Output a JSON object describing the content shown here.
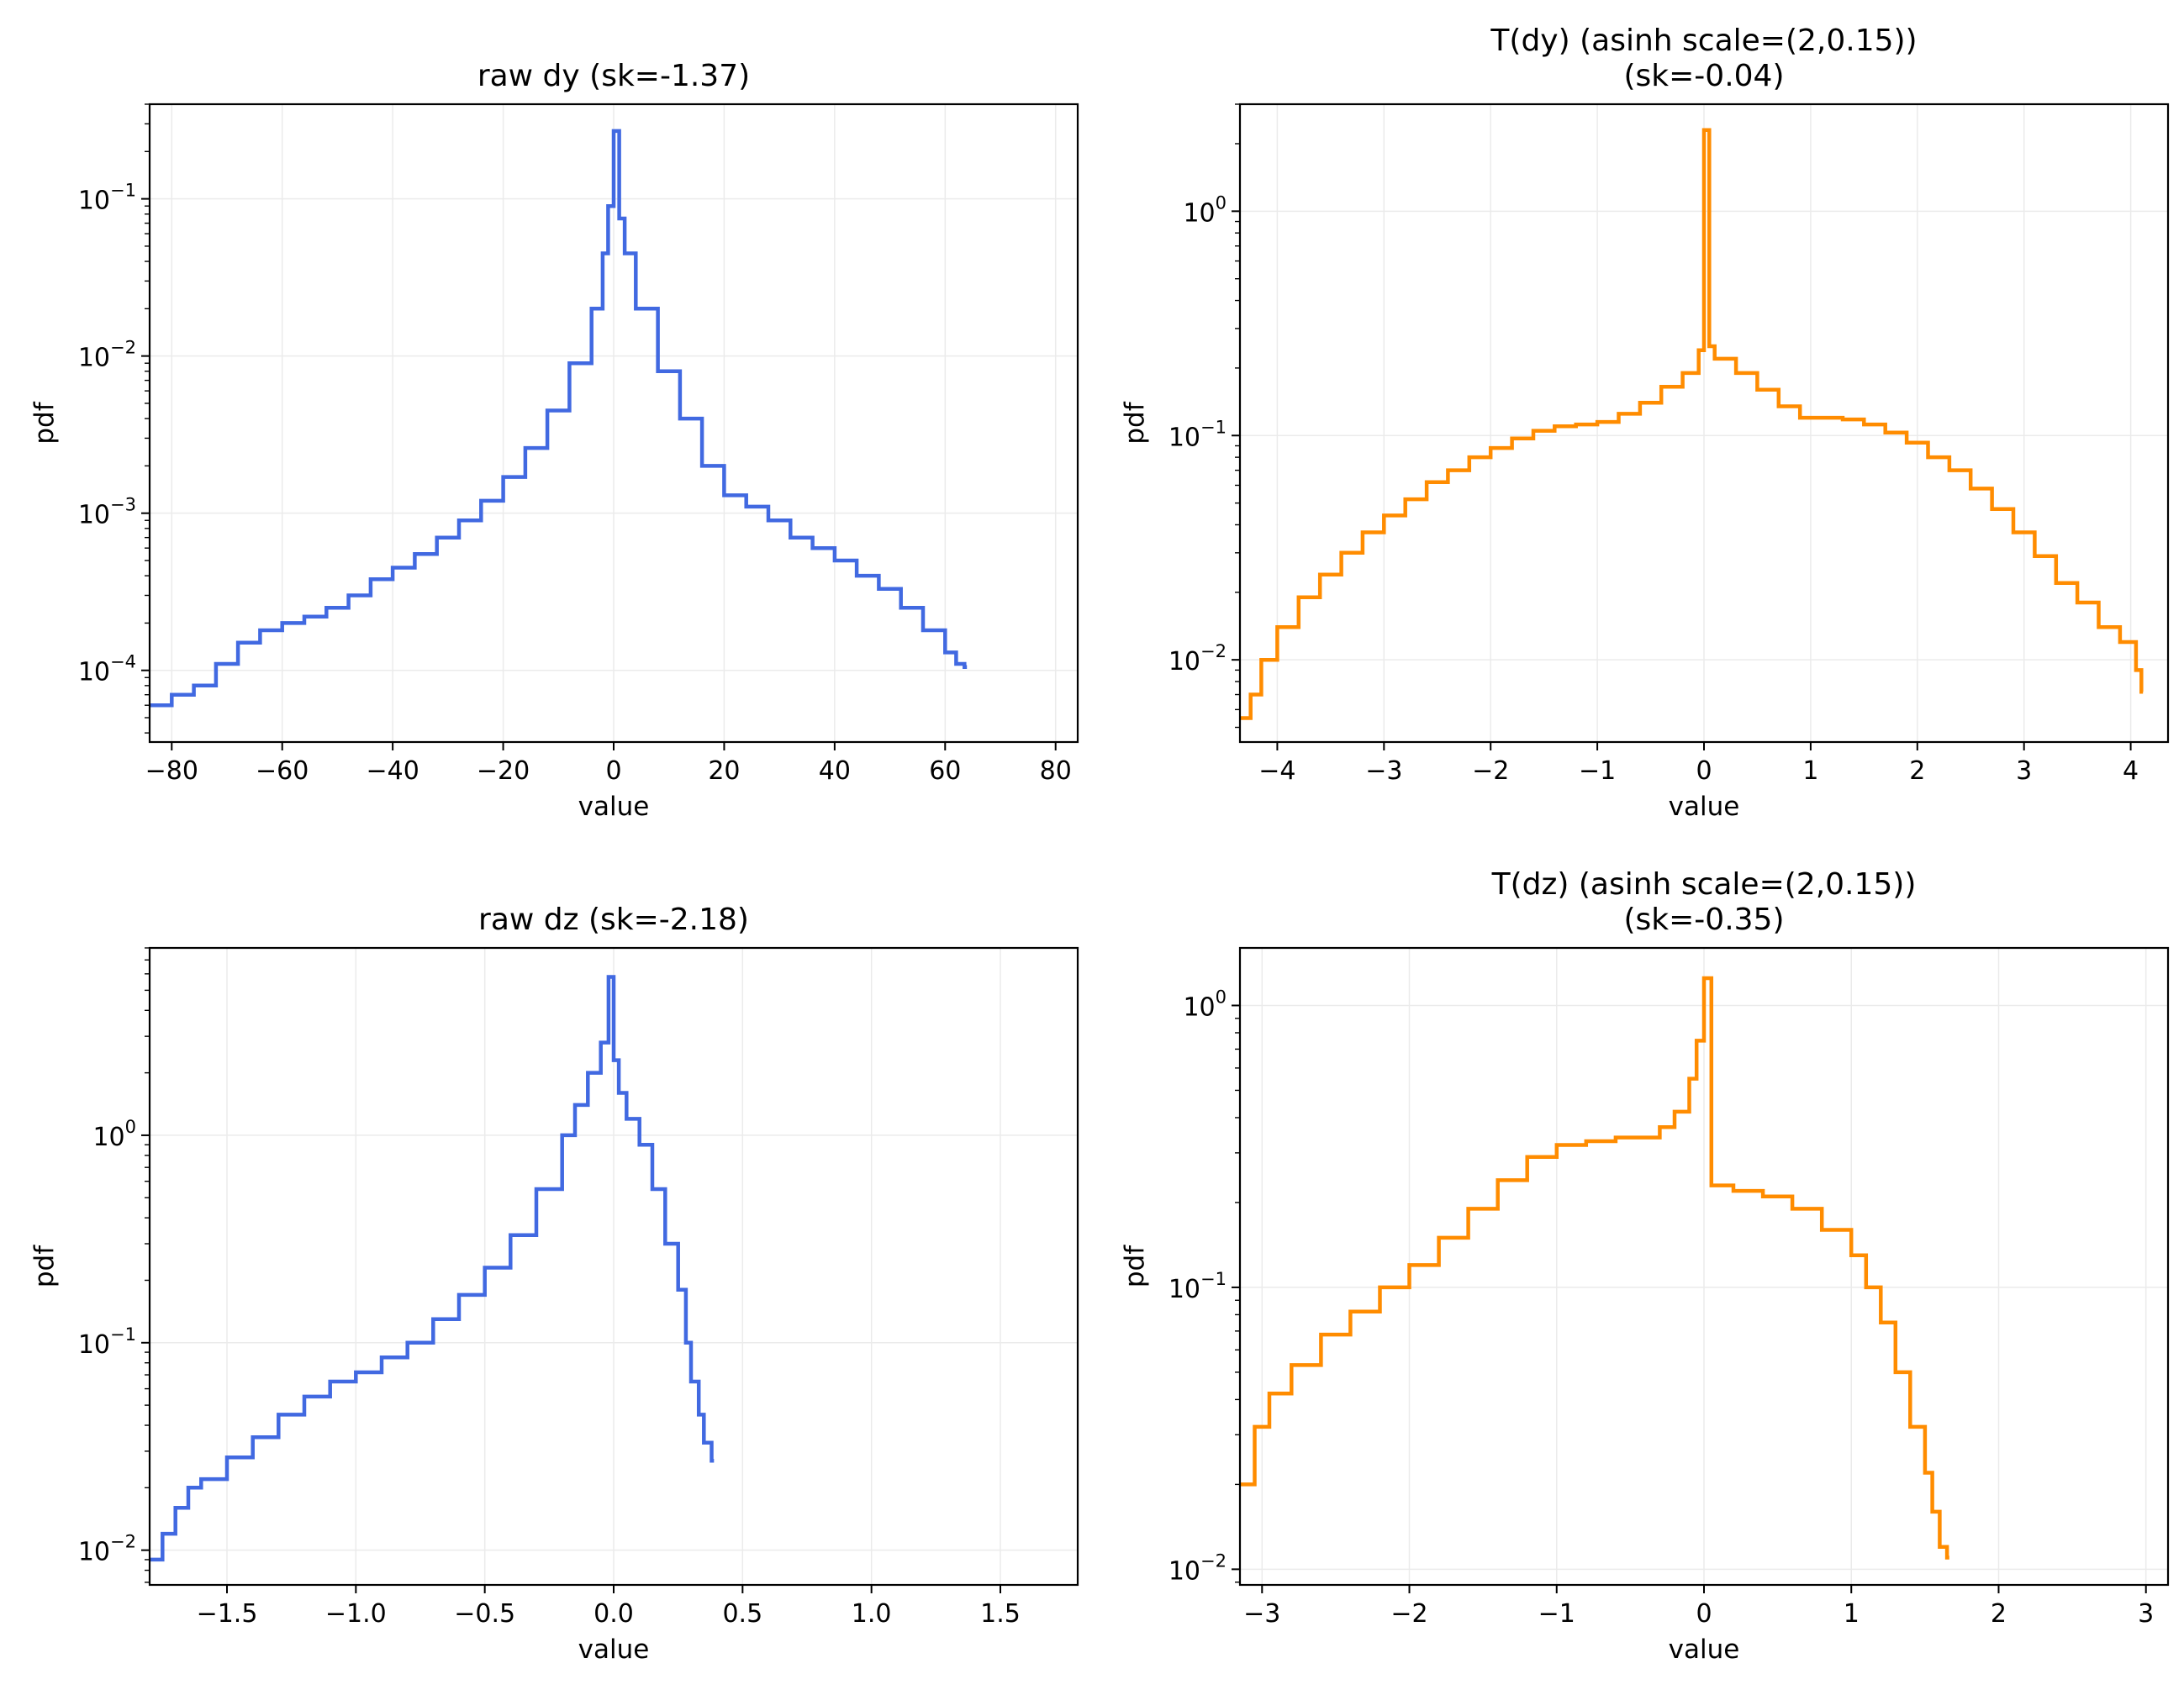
{
  "chart_data": [
    {
      "type": "line",
      "title": [
        "raw dy (sk=-1.37)"
      ],
      "xlabel": "value",
      "ylabel": "pdf",
      "color": "#4169e1",
      "xlim": [
        -84,
        84
      ],
      "ylim": [
        3.5e-05,
        0.4
      ],
      "yscale": "log",
      "grid": true,
      "xticks": [
        -80,
        -60,
        -40,
        -20,
        0,
        20,
        40,
        60,
        80
      ],
      "xtick_labels": [
        "−80",
        "−60",
        "−40",
        "−20",
        "0",
        "20",
        "40",
        "60",
        "80"
      ],
      "yticks": [
        0.0001,
        0.001,
        0.01,
        0.1
      ],
      "ytick_labels": [
        [
          "10",
          "−4"
        ],
        [
          "10",
          "−3"
        ],
        [
          "10",
          "−2"
        ],
        [
          "10",
          "−1"
        ]
      ],
      "x": [
        -84,
        -80,
        -76,
        -72,
        -68,
        -64,
        -60,
        -56,
        -52,
        -48,
        -44,
        -40,
        -36,
        -32,
        -28,
        -24,
        -20,
        -16,
        -12,
        -8,
        -4,
        -2,
        -1,
        0,
        1,
        2,
        4,
        8,
        12,
        16,
        20,
        24,
        28,
        32,
        36,
        40,
        44,
        48,
        52,
        56,
        60,
        62,
        63.5
      ],
      "y": [
        6e-05,
        7e-05,
        8e-05,
        0.00011,
        0.00015,
        0.00018,
        0.0002,
        0.00022,
        0.00025,
        0.0003,
        0.00038,
        0.00045,
        0.00055,
        0.0007,
        0.0009,
        0.0012,
        0.0017,
        0.0026,
        0.0045,
        0.009,
        0.02,
        0.045,
        0.09,
        0.27,
        0.075,
        0.045,
        0.02,
        0.008,
        0.004,
        0.002,
        0.0013,
        0.0011,
        0.0009,
        0.0007,
        0.0006,
        0.0005,
        0.0004,
        0.00033,
        0.00025,
        0.00018,
        0.00013,
        0.00011,
        0.000105
      ]
    },
    {
      "type": "line",
      "title": [
        "T(dy) (asinh scale=(2,0.15))",
        "(sk=-0.04)"
      ],
      "xlabel": "value",
      "ylabel": "pdf",
      "color": "#ff8c00",
      "xlim": [
        -4.35,
        4.35
      ],
      "ylim": [
        0.0043,
        3
      ],
      "yscale": "log",
      "grid": true,
      "xticks": [
        -4,
        -3,
        -2,
        -1,
        0,
        1,
        2,
        3,
        4
      ],
      "xtick_labels": [
        "−4",
        "−3",
        "−2",
        "−1",
        "0",
        "1",
        "2",
        "3",
        "4"
      ],
      "yticks": [
        0.01,
        0.1,
        1
      ],
      "ytick_labels": [
        [
          "10",
          "−2"
        ],
        [
          "10",
          "−1"
        ],
        [
          "10",
          "0"
        ]
      ],
      "x": [
        -4.35,
        -4.25,
        -4.15,
        -4.0,
        -3.8,
        -3.6,
        -3.4,
        -3.2,
        -3.0,
        -2.8,
        -2.6,
        -2.4,
        -2.2,
        -2.0,
        -1.8,
        -1.6,
        -1.4,
        -1.2,
        -1.0,
        -0.8,
        -0.6,
        -0.4,
        -0.2,
        -0.05,
        0.0,
        0.05,
        0.1,
        0.3,
        0.5,
        0.7,
        0.9,
        1.1,
        1.3,
        1.5,
        1.7,
        1.9,
        2.1,
        2.3,
        2.5,
        2.7,
        2.9,
        3.1,
        3.3,
        3.5,
        3.7,
        3.9,
        4.05,
        4.1
      ],
      "y": [
        0.0055,
        0.007,
        0.01,
        0.014,
        0.019,
        0.024,
        0.03,
        0.037,
        0.044,
        0.052,
        0.062,
        0.07,
        0.08,
        0.088,
        0.097,
        0.105,
        0.11,
        0.112,
        0.115,
        0.125,
        0.14,
        0.165,
        0.19,
        0.24,
        2.3,
        0.25,
        0.22,
        0.19,
        0.16,
        0.135,
        0.12,
        0.12,
        0.118,
        0.112,
        0.103,
        0.093,
        0.08,
        0.07,
        0.058,
        0.047,
        0.037,
        0.029,
        0.022,
        0.018,
        0.014,
        0.012,
        0.009,
        0.0072
      ]
    },
    {
      "type": "line",
      "title": [
        "raw dz (sk=-2.18)"
      ],
      "xlabel": "value",
      "ylabel": "pdf",
      "color": "#4169e1",
      "xlim": [
        -1.8,
        1.8
      ],
      "ylim": [
        0.0068,
        8
      ],
      "yscale": "log",
      "grid": true,
      "xticks": [
        -1.5,
        -1.0,
        -0.5,
        0.0,
        0.5,
        1.0,
        1.5
      ],
      "xtick_labels": [
        "−1.5",
        "−1.0",
        "−0.5",
        "0.0",
        "0.5",
        "1.0",
        "1.5"
      ],
      "yticks": [
        0.01,
        0.1,
        1
      ],
      "ytick_labels": [
        [
          "10",
          "−2"
        ],
        [
          "10",
          "−1"
        ],
        [
          "10",
          "0"
        ]
      ],
      "x": [
        -1.8,
        -1.75,
        -1.7,
        -1.65,
        -1.6,
        -1.5,
        -1.4,
        -1.3,
        -1.2,
        -1.1,
        -1.0,
        -0.9,
        -0.8,
        -0.7,
        -0.6,
        -0.5,
        -0.4,
        -0.3,
        -0.2,
        -0.15,
        -0.1,
        -0.05,
        -0.02,
        0.0,
        0.02,
        0.05,
        0.1,
        0.15,
        0.2,
        0.25,
        0.28,
        0.3,
        0.33,
        0.35,
        0.38
      ],
      "y": [
        0.009,
        0.012,
        0.016,
        0.02,
        0.022,
        0.028,
        0.035,
        0.045,
        0.055,
        0.065,
        0.072,
        0.085,
        0.1,
        0.13,
        0.17,
        0.23,
        0.33,
        0.55,
        1.0,
        1.4,
        2.0,
        2.8,
        5.8,
        2.3,
        1.6,
        1.2,
        0.9,
        0.55,
        0.3,
        0.18,
        0.1,
        0.065,
        0.045,
        0.033,
        0.027
      ]
    },
    {
      "type": "line",
      "title": [
        "T(dz) (asinh scale=(2,0.15))",
        "(sk=-0.35)"
      ],
      "xlabel": "value",
      "ylabel": "pdf",
      "color": "#ff8c00",
      "xlim": [
        -3.15,
        3.15
      ],
      "ylim": [
        0.0088,
        1.6
      ],
      "yscale": "log",
      "grid": true,
      "xticks": [
        -3,
        -2,
        -1,
        0,
        1,
        2,
        3
      ],
      "xtick_labels": [
        "−3",
        "−2",
        "−1",
        "0",
        "1",
        "2",
        "3"
      ],
      "yticks": [
        0.01,
        0.1,
        1
      ],
      "ytick_labels": [
        [
          "10",
          "−2"
        ],
        [
          "10",
          "−1"
        ],
        [
          "10",
          "0"
        ]
      ],
      "x": [
        -3.15,
        -3.05,
        -2.95,
        -2.8,
        -2.6,
        -2.4,
        -2.2,
        -2.0,
        -1.8,
        -1.6,
        -1.4,
        -1.2,
        -1.0,
        -0.8,
        -0.6,
        -0.4,
        -0.3,
        -0.2,
        -0.1,
        -0.05,
        0.0,
        0.05,
        0.2,
        0.4,
        0.6,
        0.8,
        1.0,
        1.1,
        1.2,
        1.3,
        1.4,
        1.5,
        1.55,
        1.6,
        1.65
      ],
      "y": [
        0.02,
        0.032,
        0.042,
        0.053,
        0.068,
        0.082,
        0.1,
        0.12,
        0.15,
        0.19,
        0.24,
        0.29,
        0.32,
        0.33,
        0.34,
        0.34,
        0.37,
        0.42,
        0.55,
        0.75,
        1.25,
        0.23,
        0.22,
        0.21,
        0.19,
        0.16,
        0.13,
        0.1,
        0.075,
        0.05,
        0.032,
        0.022,
        0.016,
        0.012,
        0.011
      ]
    }
  ]
}
